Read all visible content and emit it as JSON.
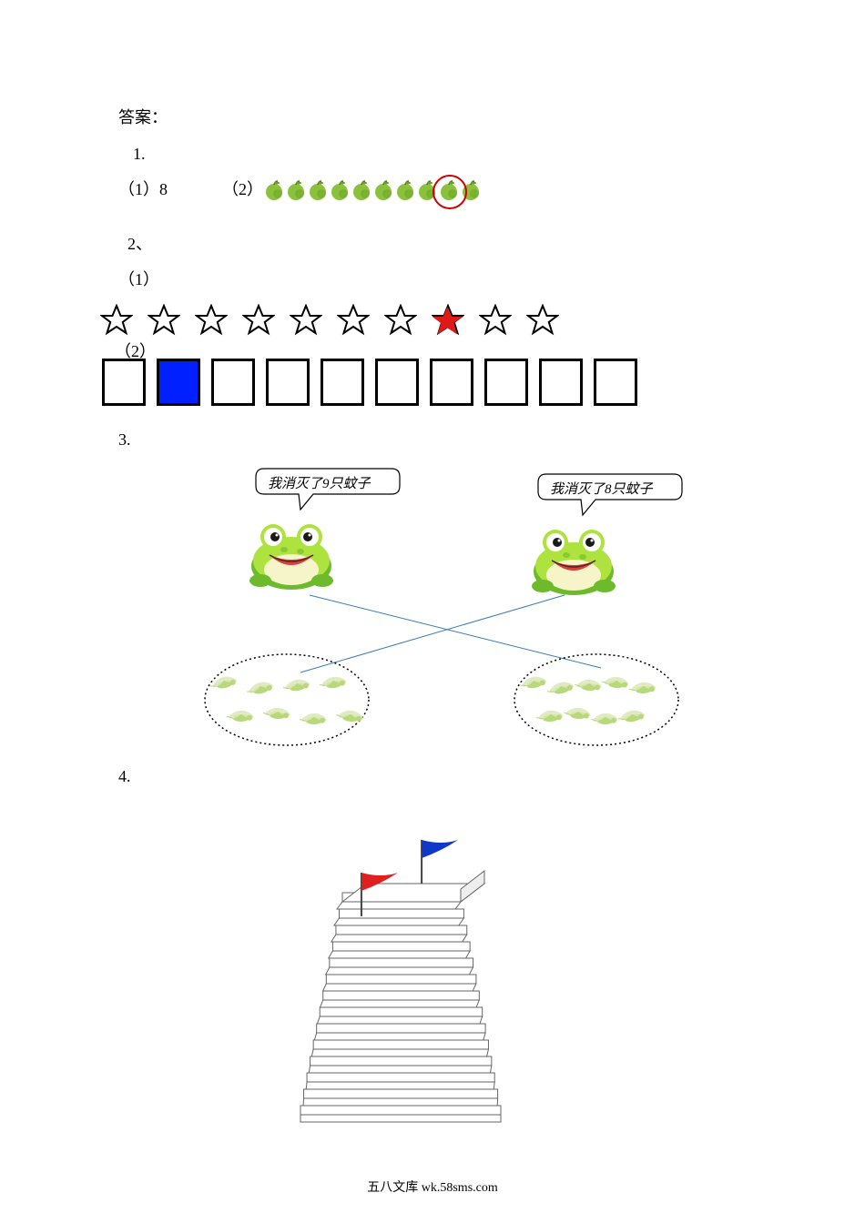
{
  "labels": {
    "answer_heading": "答案：",
    "q1": "1.",
    "q1_1": "（1）8",
    "q1_2": "（2）",
    "q2": "2、",
    "q2_1": "（1）",
    "q2_2": "（2）",
    "q3": "3.",
    "q4": "4."
  },
  "apples": {
    "count": 10,
    "body_color": "#8bc23c",
    "shadow_color": "#6aa022",
    "stem_color": "#4a6b1a",
    "circled_index": 8,
    "circle_color": "#d00000"
  },
  "stars": {
    "count": 10,
    "outline_color": "#000000",
    "fill_color": "#ffffff",
    "highlight_index": 7,
    "highlight_color": "#e01818"
  },
  "boxes": {
    "count": 10,
    "border_color": "#000000",
    "fill_color": "#0020ff",
    "filled_index": 1
  },
  "frogs": {
    "left_text": "我消灭了9只蚊子",
    "right_text": "我消灭了8只蚊子",
    "body_color": "#aee23f",
    "body_dark": "#6dbb2c",
    "belly_color": "#f6f4c9",
    "eye_white": "#ffffff",
    "eye_dark": "#1a1a1a",
    "mouth_color": "#d8403a",
    "bubble_border": "#000000",
    "bubble_fill": "#ffffff"
  },
  "mosquito_groups": {
    "left_count": 8,
    "right_count": 9,
    "body_color": "#b7d97a",
    "wing_color": "#dce8b9",
    "border_style": "dotted",
    "border_color": "#000000"
  },
  "cross_lines": {
    "color": "#3b7bb3",
    "width": 1
  },
  "stairs": {
    "step_count": 14,
    "fill": "#ffffff",
    "stroke": "#666666",
    "red_flag_step": 12,
    "blue_flag_step": 14,
    "flag_colors": {
      "red": "#e02020",
      "blue": "#1038c8"
    },
    "pole_color": "#444444"
  },
  "footer": "五八文库 wk.58sms.com"
}
